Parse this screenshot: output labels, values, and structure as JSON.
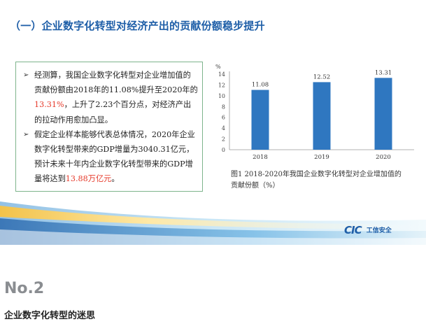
{
  "slide": {
    "title": "（一）企业数字化转型对经济产出的贡献份额稳步提升",
    "bullets": [
      {
        "mark": "➢",
        "parts": [
          {
            "text": "经测算，我国企业数字化转型对企业增加值的贡献份额由2018年的11.08%提升至2020年的",
            "red": false
          },
          {
            "text": "13.31%",
            "red": true
          },
          {
            "text": "，上升了2.23个百分点，对经济产出的拉动作用愈加凸显。",
            "red": false
          }
        ]
      },
      {
        "mark": "➢",
        "parts": [
          {
            "text": "假定企业样本能够代表总体情况，2020年企业数字化转型带来的GDP增量为3040.31亿元，预计未来十年内企业数字化转型带来的GDP增量将达到",
            "red": false
          },
          {
            "text": "13.88万亿元",
            "red": true
          },
          {
            "text": "。",
            "red": false
          }
        ]
      }
    ],
    "caption": "图1 2018-2020年我国企业数字化转型对企业增加值的贡献份额（%）",
    "logo_mark": "CIC",
    "logo_text": "工信安全"
  },
  "chart_data": {
    "type": "bar",
    "categories": [
      "2018",
      "2019",
      "2020"
    ],
    "values": [
      11.08,
      12.52,
      13.31
    ],
    "value_labels": [
      "11.08",
      "12.52",
      "13.31"
    ],
    "ylabel": "%",
    "ylim": [
      0,
      14
    ],
    "yticks": [
      "0",
      "2",
      "4",
      "6",
      "8",
      "10",
      "12",
      "14"
    ],
    "bar_color": "#2f77c0",
    "grid": false
  },
  "section": {
    "number": "No.2",
    "subtitle": "企业数字化转型的迷思"
  }
}
